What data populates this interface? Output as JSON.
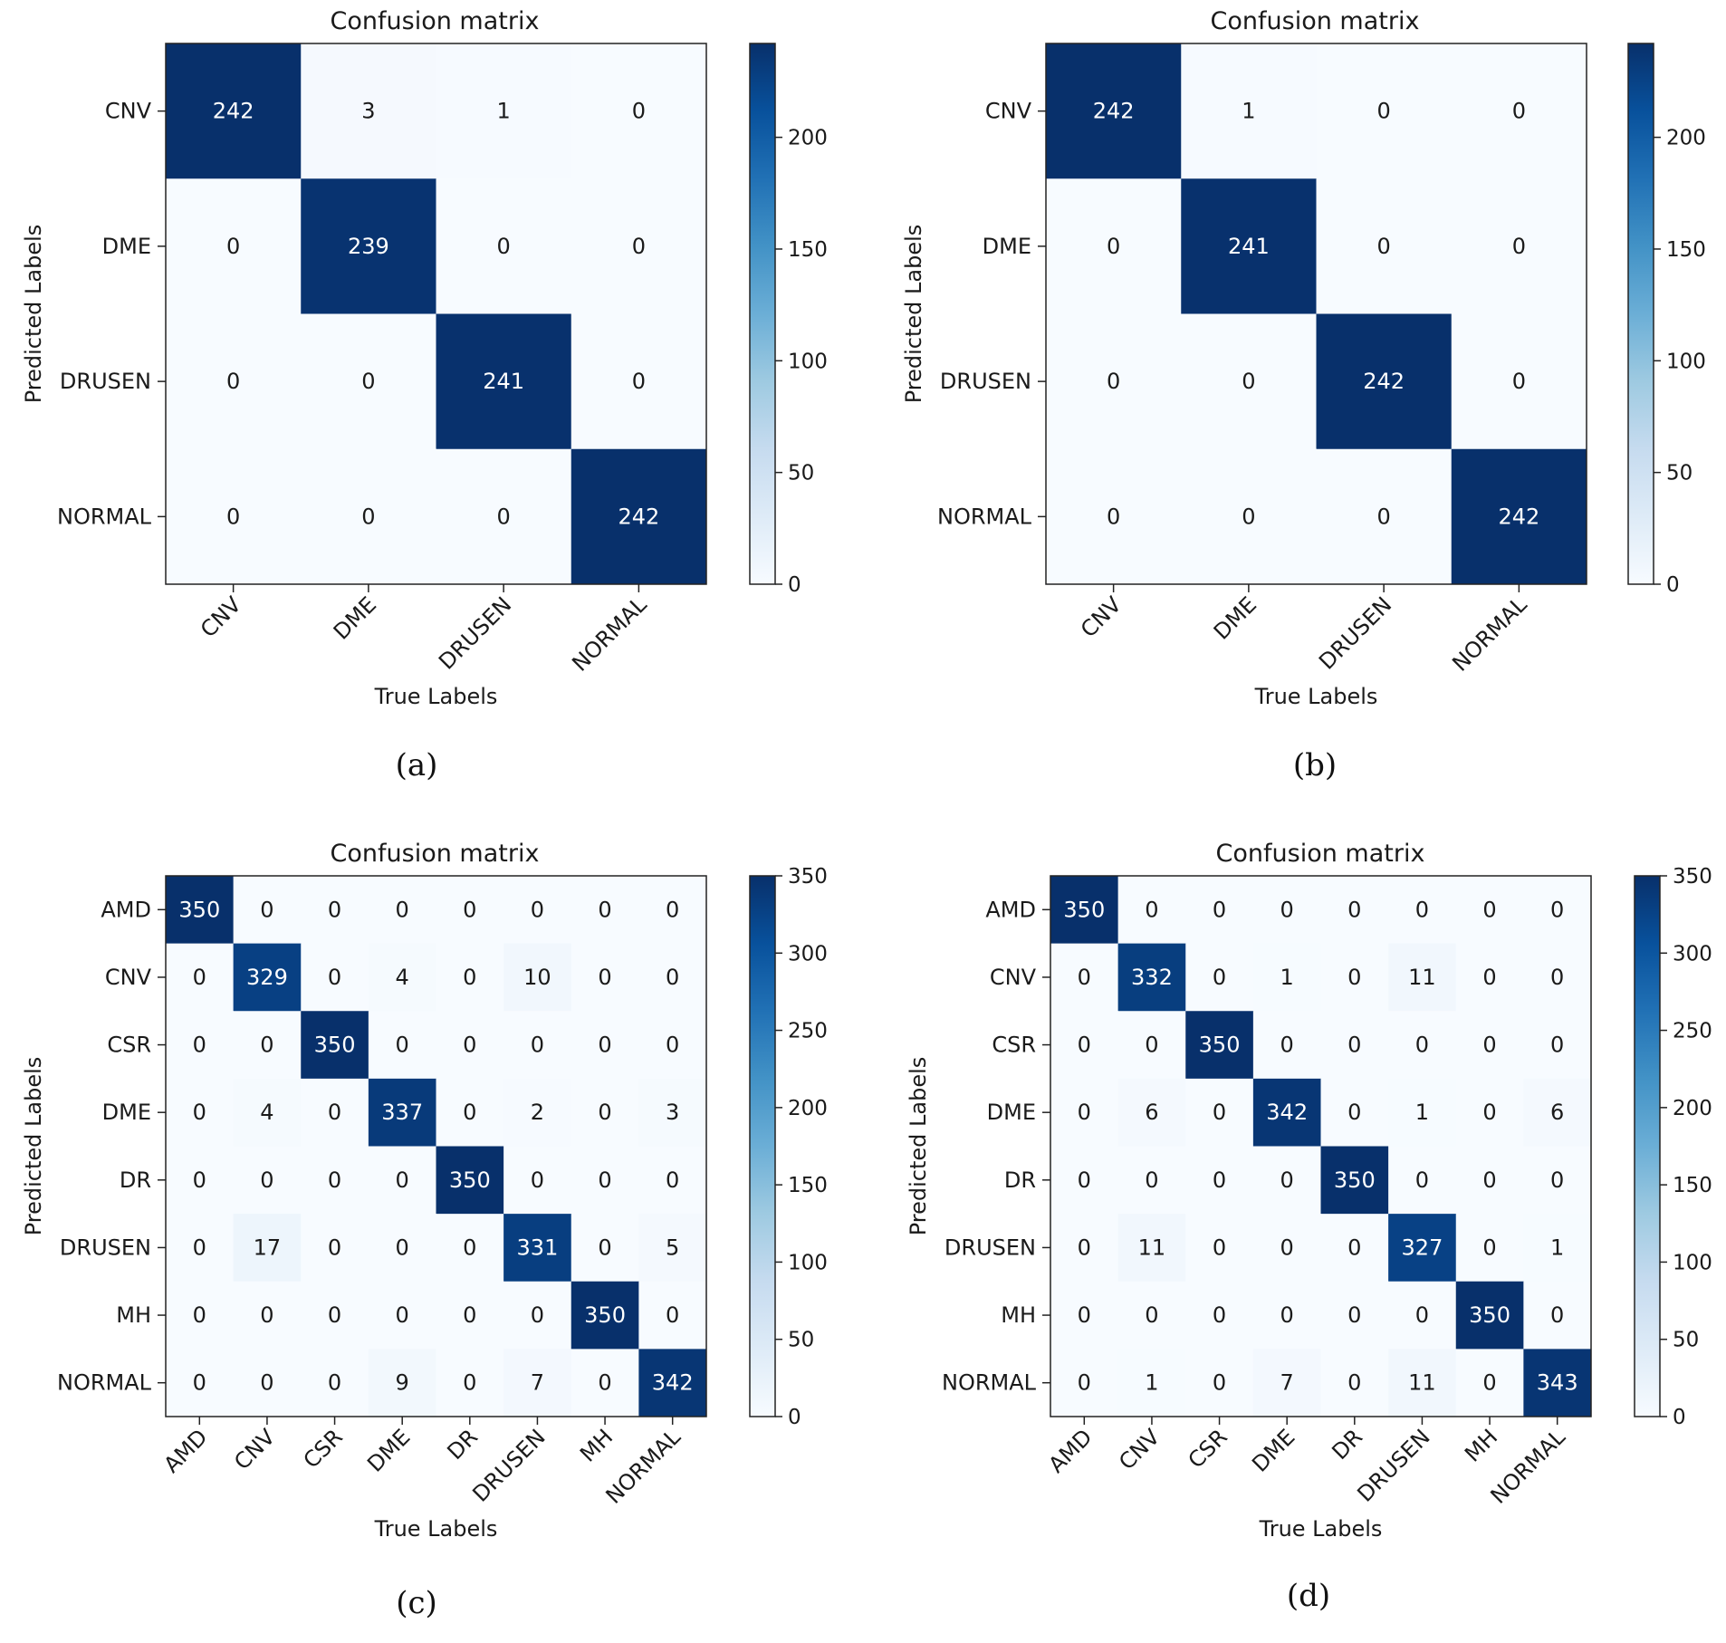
{
  "chart_data": [
    {
      "type": "heatmap",
      "panel": "(a)",
      "title": "Confusion matrix",
      "xlabel": "True Labels",
      "ylabel": "Predicted Labels",
      "classes": [
        "CNV",
        "DME",
        "DRUSEN",
        "NORMAL"
      ],
      "matrix": [
        [
          242,
          3,
          1,
          0
        ],
        [
          0,
          239,
          0,
          0
        ],
        [
          0,
          0,
          241,
          0
        ],
        [
          0,
          0,
          0,
          242
        ]
      ],
      "vmax": 242,
      "colorbar_ticks": [
        0,
        50,
        100,
        150,
        200
      ]
    },
    {
      "type": "heatmap",
      "panel": "(b)",
      "title": "Confusion matrix",
      "xlabel": "True Labels",
      "ylabel": "Predicted Labels",
      "classes": [
        "CNV",
        "DME",
        "DRUSEN",
        "NORMAL"
      ],
      "matrix": [
        [
          242,
          1,
          0,
          0
        ],
        [
          0,
          241,
          0,
          0
        ],
        [
          0,
          0,
          242,
          0
        ],
        [
          0,
          0,
          0,
          242
        ]
      ],
      "vmax": 242,
      "colorbar_ticks": [
        0,
        50,
        100,
        150,
        200
      ]
    },
    {
      "type": "heatmap",
      "panel": "(c)",
      "title": "Confusion matrix",
      "xlabel": "True Labels",
      "ylabel": "Predicted Labels",
      "classes": [
        "AMD",
        "CNV",
        "CSR",
        "DME",
        "DR",
        "DRUSEN",
        "MH",
        "NORMAL"
      ],
      "matrix": [
        [
          350,
          0,
          0,
          0,
          0,
          0,
          0,
          0
        ],
        [
          0,
          329,
          0,
          4,
          0,
          10,
          0,
          0
        ],
        [
          0,
          0,
          350,
          0,
          0,
          0,
          0,
          0
        ],
        [
          0,
          4,
          0,
          337,
          0,
          2,
          0,
          3
        ],
        [
          0,
          0,
          0,
          0,
          350,
          0,
          0,
          0
        ],
        [
          0,
          17,
          0,
          0,
          0,
          331,
          0,
          5
        ],
        [
          0,
          0,
          0,
          0,
          0,
          0,
          350,
          0
        ],
        [
          0,
          0,
          0,
          9,
          0,
          7,
          0,
          342
        ]
      ],
      "vmax": 350,
      "colorbar_ticks": [
        0,
        50,
        100,
        150,
        200,
        250,
        300,
        350
      ]
    },
    {
      "type": "heatmap",
      "panel": "(d)",
      "title": "Confusion matrix",
      "xlabel": "True Labels",
      "ylabel": "Predicted Labels",
      "classes": [
        "AMD",
        "CNV",
        "CSR",
        "DME",
        "DR",
        "DRUSEN",
        "MH",
        "NORMAL"
      ],
      "matrix": [
        [
          350,
          0,
          0,
          0,
          0,
          0,
          0,
          0
        ],
        [
          0,
          332,
          0,
          1,
          0,
          11,
          0,
          0
        ],
        [
          0,
          0,
          350,
          0,
          0,
          0,
          0,
          0
        ],
        [
          0,
          6,
          0,
          342,
          0,
          1,
          0,
          6
        ],
        [
          0,
          0,
          0,
          0,
          350,
          0,
          0,
          0
        ],
        [
          0,
          11,
          0,
          0,
          0,
          327,
          0,
          1
        ],
        [
          0,
          0,
          0,
          0,
          0,
          0,
          350,
          0
        ],
        [
          0,
          1,
          0,
          7,
          0,
          11,
          0,
          343
        ]
      ],
      "vmax": 350,
      "colorbar_ticks": [
        0,
        50,
        100,
        150,
        200,
        250,
        300,
        350
      ]
    }
  ]
}
